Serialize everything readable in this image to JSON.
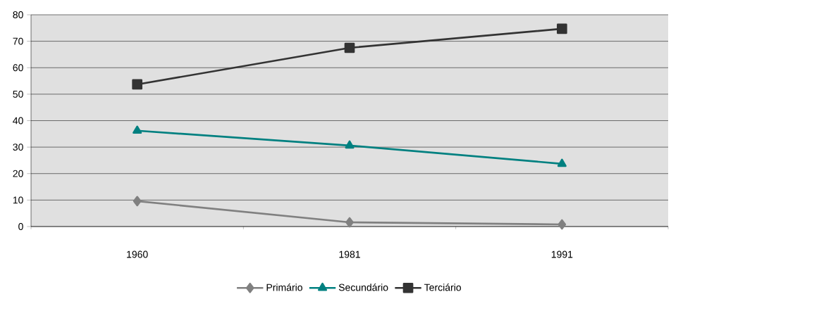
{
  "chart_data": {
    "type": "line",
    "categories": [
      "1960",
      "1981",
      "1991"
    ],
    "series": [
      {
        "name": "Primário",
        "color": "#808080",
        "marker": "diamond",
        "values": [
          9.6,
          1.6,
          0.8
        ]
      },
      {
        "name": "Secundário",
        "color": "#008080",
        "marker": "triangle",
        "values": [
          36.2,
          30.6,
          23.7
        ]
      },
      {
        "name": "Terciário",
        "color": "#333333",
        "marker": "square",
        "values": [
          53.7,
          67.5,
          74.7
        ]
      }
    ],
    "ylim": [
      0,
      80
    ],
    "yticks": [
      0,
      10,
      20,
      30,
      40,
      50,
      60,
      70,
      80
    ],
    "grid": "y",
    "legend": "bottom",
    "line_style": "solid"
  }
}
